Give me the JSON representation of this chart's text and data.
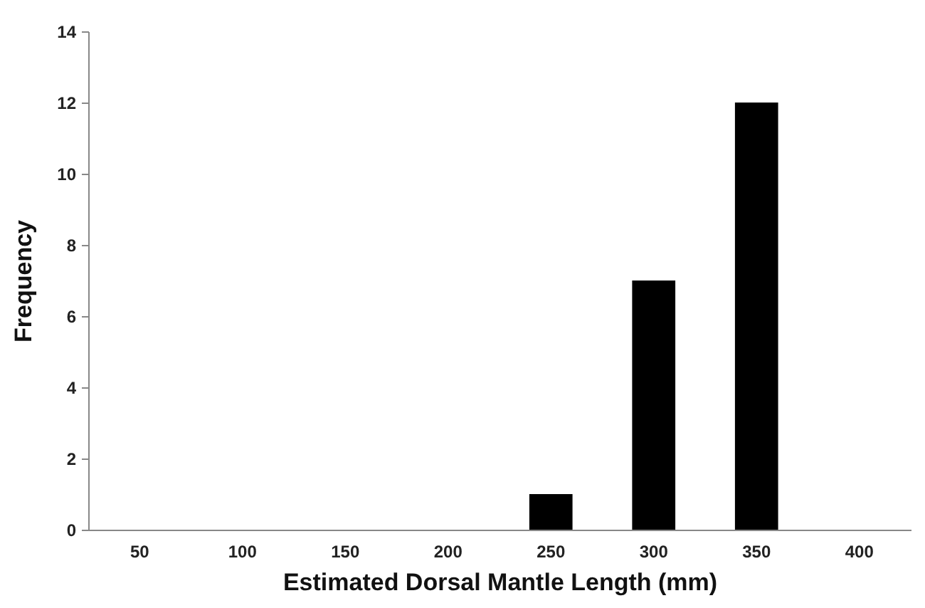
{
  "chart_data": {
    "type": "bar",
    "xlabel": "Estimated Dorsal Mantle Length (mm)",
    "ylabel": "Frequency",
    "categories": [
      "50",
      "100",
      "150",
      "200",
      "250",
      "300",
      "350",
      "400"
    ],
    "values": [
      0,
      0,
      0,
      0,
      1,
      7,
      12,
      0
    ],
    "color": "#000000",
    "ylim": [
      0,
      14
    ],
    "yticks": [
      0,
      2,
      4,
      6,
      8,
      10,
      12,
      14
    ],
    "grid": false
  }
}
